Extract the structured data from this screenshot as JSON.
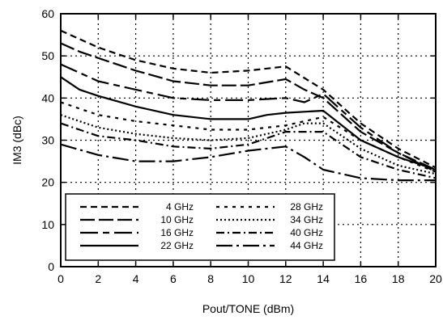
{
  "chart_data": {
    "type": "line",
    "xlabel": "Pout/TONE (dBm)",
    "ylabel": "IM3 (dBc)",
    "xlim": [
      0,
      20
    ],
    "ylim": [
      0,
      60
    ],
    "x_ticks": [
      0,
      2,
      4,
      6,
      8,
      10,
      12,
      14,
      16,
      18,
      20
    ],
    "y_ticks": [
      0,
      10,
      20,
      30,
      40,
      50,
      60
    ],
    "grid": "dotted",
    "legend_position": "bottom-left",
    "series": [
      {
        "name": "4 GHz",
        "dash": "8,5",
        "points": [
          [
            0,
            56
          ],
          [
            1,
            54
          ],
          [
            2,
            52
          ],
          [
            3,
            50.5
          ],
          [
            4,
            49
          ],
          [
            6,
            47
          ],
          [
            8,
            46
          ],
          [
            10,
            46.5
          ],
          [
            12,
            47.5
          ],
          [
            14,
            42
          ],
          [
            16,
            34
          ],
          [
            18,
            28
          ],
          [
            20,
            23.5
          ]
        ]
      },
      {
        "name": "10 GHz",
        "dash": "18,5",
        "points": [
          [
            0,
            53
          ],
          [
            1,
            51
          ],
          [
            2,
            49.5
          ],
          [
            3,
            48
          ],
          [
            4,
            46.5
          ],
          [
            6,
            44
          ],
          [
            8,
            43
          ],
          [
            10,
            43
          ],
          [
            12,
            44.5
          ],
          [
            13,
            42
          ],
          [
            14,
            40
          ],
          [
            16,
            32
          ],
          [
            18,
            27
          ],
          [
            20,
            23
          ]
        ]
      },
      {
        "name": "16 GHz",
        "dash": "22,6,8,6",
        "points": [
          [
            0,
            48
          ],
          [
            1,
            46
          ],
          [
            2,
            44
          ],
          [
            3,
            43
          ],
          [
            4,
            42
          ],
          [
            6,
            40
          ],
          [
            8,
            39.5
          ],
          [
            10,
            39.5
          ],
          [
            12,
            40
          ],
          [
            13,
            39
          ],
          [
            14,
            41
          ],
          [
            16,
            33
          ],
          [
            18,
            27
          ],
          [
            20,
            22.5
          ]
        ]
      },
      {
        "name": "22 GHz",
        "dash": "none",
        "points": [
          [
            0,
            45
          ],
          [
            1,
            42
          ],
          [
            2,
            40.5
          ],
          [
            4,
            38
          ],
          [
            6,
            36
          ],
          [
            8,
            35
          ],
          [
            10,
            35
          ],
          [
            11,
            36
          ],
          [
            12,
            36.5
          ],
          [
            14,
            37
          ],
          [
            16,
            30
          ],
          [
            18,
            26
          ],
          [
            20,
            23
          ]
        ]
      },
      {
        "name": "28 GHz",
        "dash": "4,6",
        "points": [
          [
            0,
            39
          ],
          [
            1,
            37.5
          ],
          [
            2,
            36
          ],
          [
            4,
            34.5
          ],
          [
            6,
            33.5
          ],
          [
            8,
            32.5
          ],
          [
            10,
            32.5
          ],
          [
            12,
            33.5
          ],
          [
            14,
            35.5
          ],
          [
            16,
            30
          ],
          [
            18,
            26
          ],
          [
            20,
            22.5
          ]
        ]
      },
      {
        "name": "34 GHz",
        "dash": "2,3",
        "points": [
          [
            0,
            36
          ],
          [
            1,
            34.5
          ],
          [
            2,
            33
          ],
          [
            4,
            31.5
          ],
          [
            6,
            30.5
          ],
          [
            8,
            30
          ],
          [
            10,
            30.5
          ],
          [
            12,
            32.5
          ],
          [
            13,
            34
          ],
          [
            14,
            34
          ],
          [
            16,
            28
          ],
          [
            18,
            24
          ],
          [
            20,
            22
          ]
        ]
      },
      {
        "name": "40 GHz",
        "dash": "10,4,2,4",
        "points": [
          [
            0,
            34
          ],
          [
            1,
            32.5
          ],
          [
            2,
            31
          ],
          [
            4,
            30
          ],
          [
            6,
            28.5
          ],
          [
            8,
            28
          ],
          [
            10,
            29
          ],
          [
            11,
            30.5
          ],
          [
            12,
            32
          ],
          [
            13,
            32
          ],
          [
            14,
            32
          ],
          [
            16,
            26
          ],
          [
            18,
            23
          ],
          [
            20,
            21
          ]
        ]
      },
      {
        "name": "44 GHz",
        "dash": "20,5,3,5",
        "points": [
          [
            0,
            29
          ],
          [
            2,
            26.5
          ],
          [
            4,
            25
          ],
          [
            6,
            25
          ],
          [
            8,
            26
          ],
          [
            10,
            27.5
          ],
          [
            12,
            28.5
          ],
          [
            13,
            26
          ],
          [
            14,
            23
          ],
          [
            16,
            21
          ],
          [
            18,
            20.5
          ],
          [
            20,
            20.5
          ]
        ]
      }
    ]
  }
}
